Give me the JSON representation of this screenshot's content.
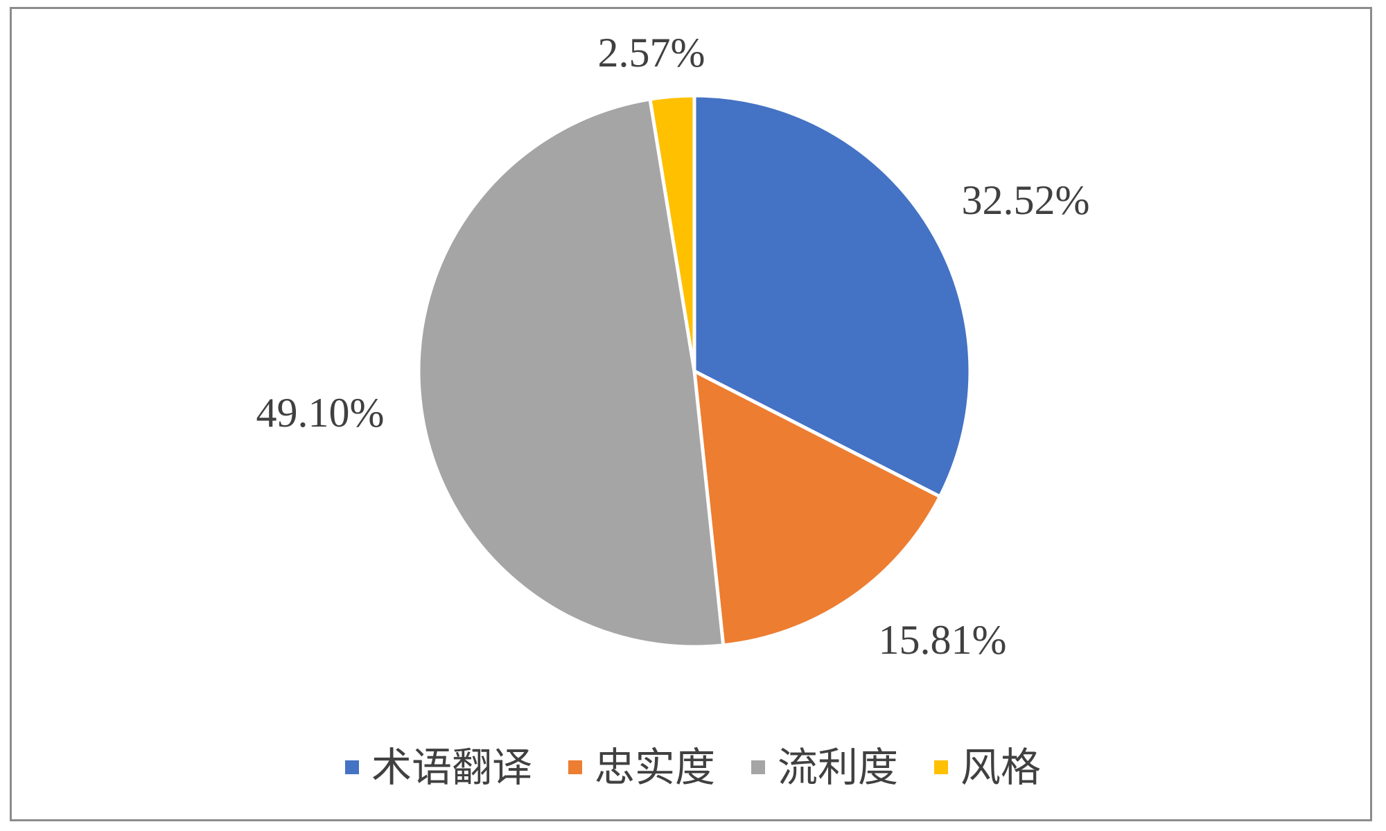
{
  "chart_data": {
    "type": "pie",
    "title": "",
    "categories": [
      "术语翻译",
      "忠实度",
      "流利度",
      "风格"
    ],
    "values": [
      32.52,
      15.81,
      49.1,
      2.57
    ],
    "labels": [
      "32.52%",
      "15.81%",
      "49.10%",
      "2.57%"
    ],
    "colors": [
      "#4472C4",
      "#ED7D31",
      "#A5A5A5",
      "#FFC000"
    ],
    "start_angle_deg": 0,
    "direction": "clockwise",
    "legend": "bottom",
    "grid": false
  }
}
